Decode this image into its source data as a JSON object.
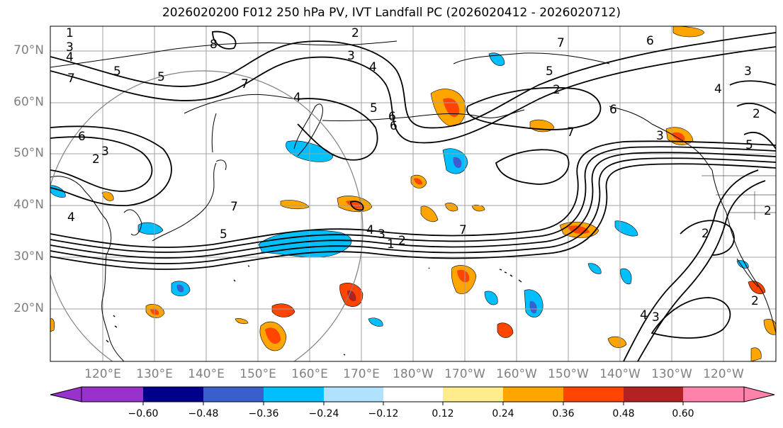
{
  "title": "2026020200 F012 250 hPa PV, IVT Landfall PC (2026020412 - 2026020712)",
  "lat_labels": [
    "70°N",
    "60°N",
    "50°N",
    "40°N",
    "30°N",
    "20°N"
  ],
  "lon_labels": [
    "120°E",
    "130°E",
    "140°E",
    "150°E",
    "160°E",
    "170°E",
    "180°W",
    "170°W",
    "160°W",
    "150°W",
    "140°W",
    "130°W",
    "120°W"
  ],
  "colorbar": {
    "colors": [
      "#9932cc",
      "#00008b",
      "#3a5fcd",
      "#00bfff",
      "#b0e2ff",
      "#ffffff",
      "#ffec8b",
      "#ffa500",
      "#ff4500",
      "#b22222",
      "#ff82ab"
    ],
    "ticks": [
      "−0.60",
      "−0.48",
      "−0.36",
      "−0.24",
      "−0.12",
      "0.12",
      "0.24",
      "0.36",
      "0.48",
      "0.60"
    ]
  },
  "contour_labels": [
    "2",
    "3",
    "4",
    "5",
    "6",
    "7",
    "8",
    "1",
    "2",
    "3",
    "4",
    "5",
    "6",
    "7",
    "4",
    "3",
    "1",
    "2",
    "7",
    "5",
    "2",
    "6",
    "7",
    "6",
    "5",
    "4",
    "3",
    "2",
    "3",
    "4",
    "7",
    "2",
    "3",
    "4",
    "5",
    "6",
    "7",
    "5",
    "4",
    "2",
    "3",
    "2"
  ]
}
